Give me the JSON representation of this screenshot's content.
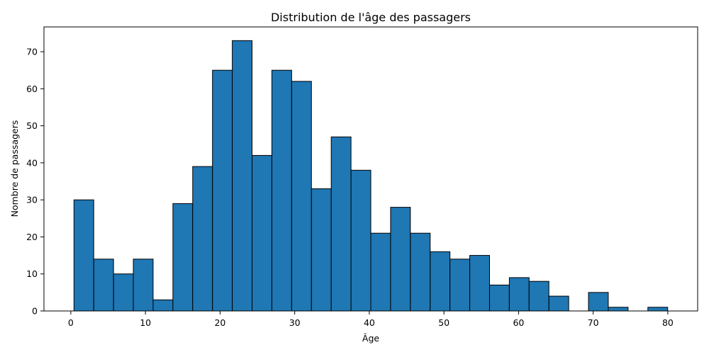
{
  "chart_data": {
    "type": "bar",
    "title": "Distribution de l'âge des passagers",
    "xlabel": "Âge",
    "ylabel": "Nombre de passagers",
    "xlim": [
      -3.6,
      84.0
    ],
    "ylim": [
      0,
      76.7
    ],
    "x_ticks": [
      0,
      10,
      20,
      30,
      40,
      50,
      60,
      70,
      80
    ],
    "y_ticks": [
      0,
      10,
      20,
      30,
      40,
      50,
      60,
      70
    ],
    "bin_start": 0.42,
    "bin_width": 2.652,
    "values": [
      30,
      14,
      10,
      14,
      3,
      29,
      39,
      65,
      73,
      42,
      65,
      62,
      33,
      47,
      38,
      21,
      28,
      21,
      16,
      14,
      15,
      7,
      9,
      8,
      4,
      0,
      5,
      1,
      0,
      1
    ],
    "grid": false,
    "legend": "none",
    "bar_color": "#1f77b4",
    "edge_color": "#000000"
  }
}
